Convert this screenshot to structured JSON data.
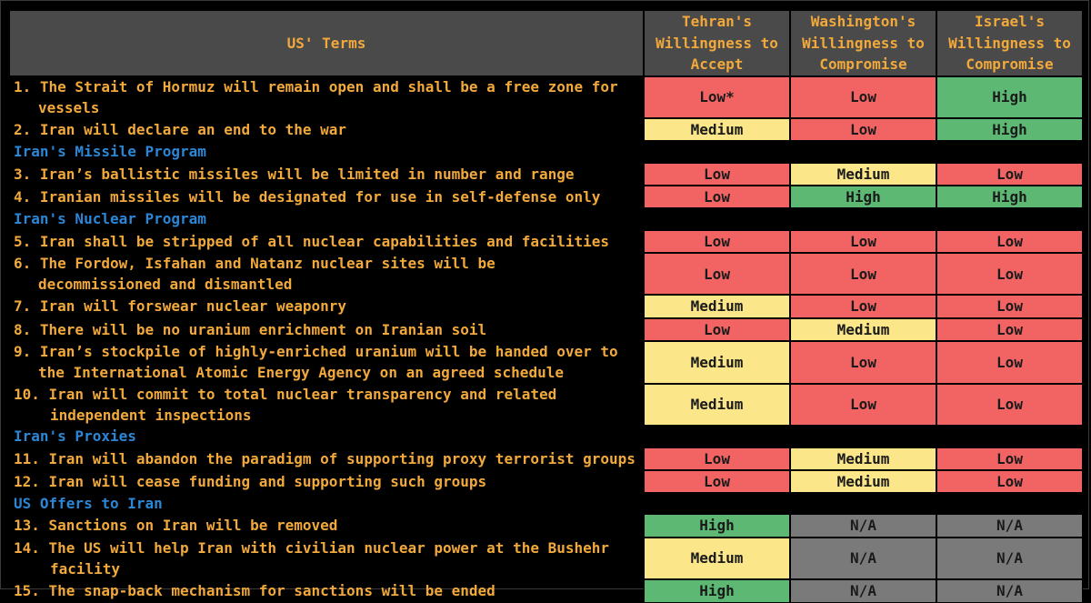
{
  "header": {
    "terms": "US' Terms",
    "tehran": [
      "Tehran's",
      "Willingness to",
      "Accept"
    ],
    "washington": [
      "Washington's",
      "Willingness to",
      "Compromise"
    ],
    "israel": [
      "Israel's",
      "Willingness to",
      "Compromise"
    ]
  },
  "colors": {
    "Low": "#f26464",
    "Medium": "#fbe68a",
    "High": "#5cb873",
    "N/A": "#7a7a7a",
    "term_text": "#f2a93b",
    "section_text": "#2b86d6"
  },
  "rows": [
    {
      "kind": "term",
      "lines": [
        "1. The Strait of Hormuz will remain open and shall be a free zone for",
        "vessels"
      ],
      "tehran": "Low*",
      "washington": "Low",
      "israel": "High"
    },
    {
      "kind": "term",
      "lines": [
        "2. Iran will declare an end to the war"
      ],
      "tehran": "Medium",
      "washington": "Low",
      "israel": "High"
    },
    {
      "kind": "section",
      "label": "Iran's Missile Program"
    },
    {
      "kind": "term",
      "lines": [
        "3. Iran’s ballistic missiles will be limited in number and range"
      ],
      "tehran": "Low",
      "washington": "Medium",
      "israel": "Low"
    },
    {
      "kind": "term",
      "lines": [
        "4. Iranian missiles will be designated for use in self-defense only"
      ],
      "tehran": "Low",
      "washington": "High",
      "israel": "High"
    },
    {
      "kind": "section",
      "label": "Iran's Nuclear Program"
    },
    {
      "kind": "term",
      "lines": [
        "5. Iran shall be stripped of all nuclear capabilities and facilities"
      ],
      "tehran": "Low",
      "washington": "Low",
      "israel": "Low"
    },
    {
      "kind": "term",
      "lines": [
        "6. The Fordow, Isfahan and Natanz nuclear sites will be",
        "decommissioned and dismantled"
      ],
      "tehran": "Low",
      "washington": "Low",
      "israel": "Low"
    },
    {
      "kind": "term",
      "lines": [
        "7. Iran will forswear nuclear weaponry"
      ],
      "tehran": "Medium",
      "washington": "Low",
      "israel": "Low"
    },
    {
      "kind": "term",
      "lines": [
        "8. There will be no uranium enrichment on Iranian soil"
      ],
      "tehran": "Low",
      "washington": "Medium",
      "israel": "Low"
    },
    {
      "kind": "term",
      "lines": [
        "9. Iran’s stockpile of highly-enriched uranium will be handed over to",
        "the International Atomic Energy Agency on an agreed schedule"
      ],
      "tehran": "Medium",
      "washington": "Low",
      "israel": "Low"
    },
    {
      "kind": "term",
      "lines": [
        "10. Iran will commit to total nuclear transparency and related",
        "independent inspections"
      ],
      "tehran": "Medium",
      "washington": "Low",
      "israel": "Low"
    },
    {
      "kind": "section",
      "label": "Iran's Proxies"
    },
    {
      "kind": "term",
      "lines": [
        "11. Iran will abandon the paradigm of supporting proxy terrorist groups"
      ],
      "tehran": "Low",
      "washington": "Medium",
      "israel": "Low"
    },
    {
      "kind": "term",
      "lines": [
        "12. Iran will cease funding and supporting such groups"
      ],
      "tehran": "Low",
      "washington": "Medium",
      "israel": "Low"
    },
    {
      "kind": "section",
      "label": "US Offers to Iran"
    },
    {
      "kind": "term",
      "lines": [
        "13. Sanctions on Iran will be removed"
      ],
      "tehran": "High",
      "washington": "N/A",
      "israel": "N/A"
    },
    {
      "kind": "term",
      "lines": [
        "14. The US will help Iran with civilian nuclear power at the Bushehr",
        "facility"
      ],
      "tehran": "Medium",
      "washington": "N/A",
      "israel": "N/A"
    },
    {
      "kind": "term",
      "lines": [
        "15. The snap-back mechanism for sanctions will be ended"
      ],
      "tehran": "High",
      "washington": "N/A",
      "israel": "N/A"
    }
  ]
}
